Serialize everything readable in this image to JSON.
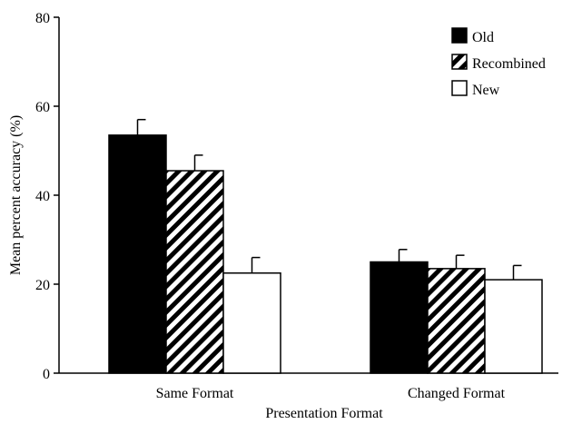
{
  "chart_data": {
    "type": "bar",
    "title": "",
    "xlabel": "Presentation Format",
    "ylabel": "Mean percent accuracy (%)",
    "ylim": [
      0,
      80
    ],
    "yticks": [
      "0",
      "20",
      "40",
      "60",
      "80"
    ],
    "categories": [
      "Same Format",
      "Changed Format"
    ],
    "series": [
      {
        "name": "Old",
        "values": [
          53.5,
          25
        ],
        "errors": [
          3.5,
          2.8
        ],
        "fill": "solid",
        "color": "#000000"
      },
      {
        "name": "Recombined",
        "values": [
          45.5,
          23.5
        ],
        "errors": [
          3.5,
          3.0
        ],
        "fill": "hatched",
        "color": "#000000"
      },
      {
        "name": "New",
        "values": [
          22.5,
          21
        ],
        "errors": [
          3.5,
          3.2
        ],
        "fill": "empty",
        "color": "#ffffff"
      }
    ],
    "legend_position": "top-right",
    "grid": false
  }
}
